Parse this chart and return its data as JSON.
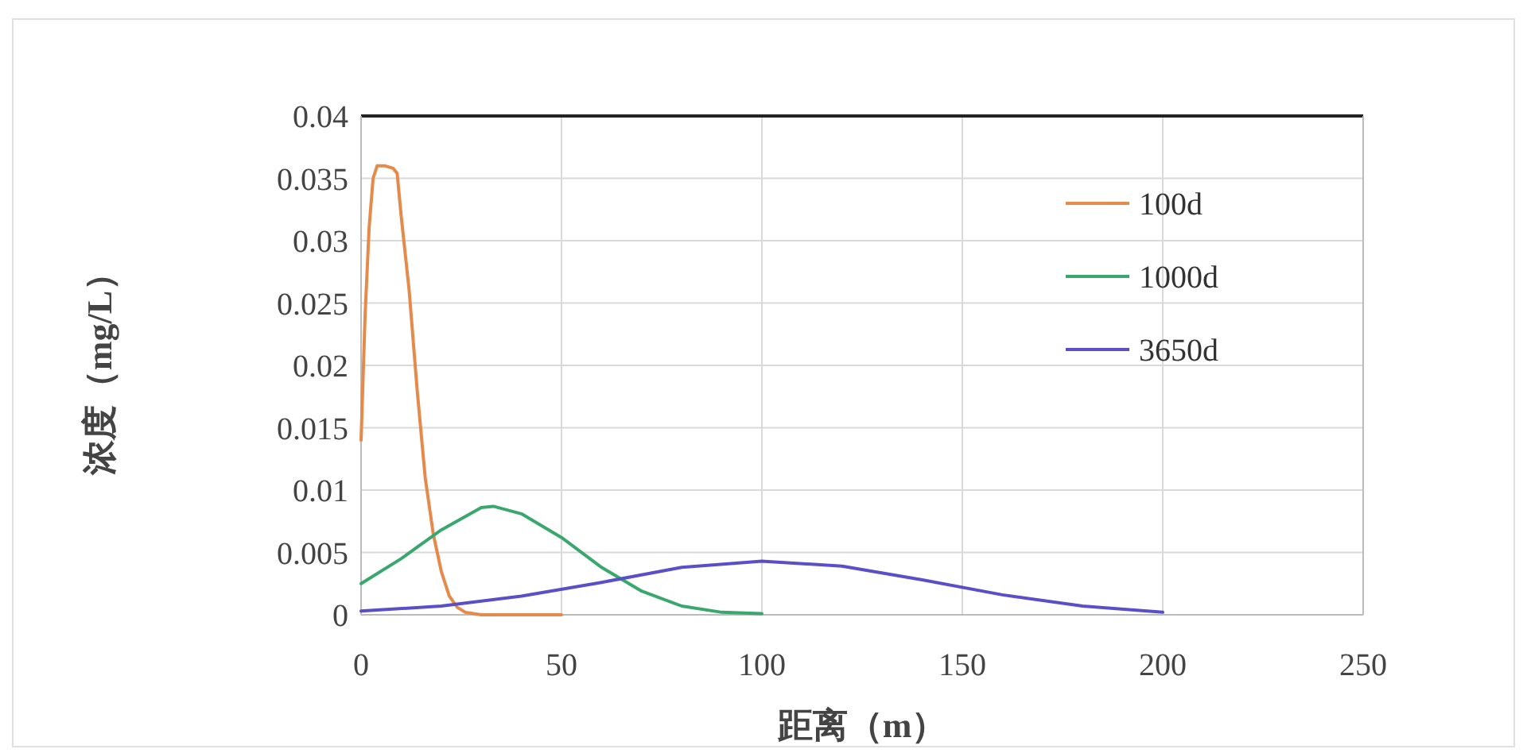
{
  "chart_data": {
    "type": "line",
    "xlabel": "距离（m）",
    "ylabel": "浓度（mg/L）",
    "xlim": [
      0,
      250
    ],
    "xticks": [
      0,
      50,
      100,
      150,
      200,
      250
    ],
    "ylim": [
      0,
      0.04
    ],
    "yticks": [
      0,
      0.005,
      0.01,
      0.015,
      0.02,
      0.025,
      0.03,
      0.035,
      0.04
    ],
    "grid": true,
    "legend": "top right",
    "marker": "none",
    "line_style": "solid",
    "series": [
      {
        "name": "100d",
        "color": "#e58a4a",
        "x": [
          0,
          1,
          2,
          3,
          4,
          6,
          8,
          9,
          10,
          12,
          14,
          16,
          18,
          20,
          22,
          24,
          26,
          30,
          40,
          50
        ],
        "values": [
          0.014,
          0.024,
          0.031,
          0.035,
          0.036,
          0.036,
          0.0358,
          0.0354,
          0.032,
          0.026,
          0.018,
          0.011,
          0.0065,
          0.0035,
          0.0015,
          0.0006,
          0.0002,
          0,
          0,
          0
        ]
      },
      {
        "name": "1000d",
        "color": "#3aa86e",
        "x": [
          0,
          10,
          20,
          30,
          33,
          40,
          50,
          60,
          70,
          80,
          90,
          100
        ],
        "values": [
          0.0025,
          0.0045,
          0.0068,
          0.0086,
          0.0087,
          0.0081,
          0.0062,
          0.0038,
          0.0019,
          0.0007,
          0.0002,
          0.0001
        ]
      },
      {
        "name": "3650d",
        "color": "#5a4fc8",
        "x": [
          0,
          20,
          40,
          60,
          80,
          100,
          120,
          140,
          160,
          180,
          200
        ],
        "values": [
          0.0003,
          0.0007,
          0.0015,
          0.0026,
          0.0038,
          0.0043,
          0.0039,
          0.0028,
          0.0016,
          0.0007,
          0.0002
        ]
      }
    ]
  }
}
